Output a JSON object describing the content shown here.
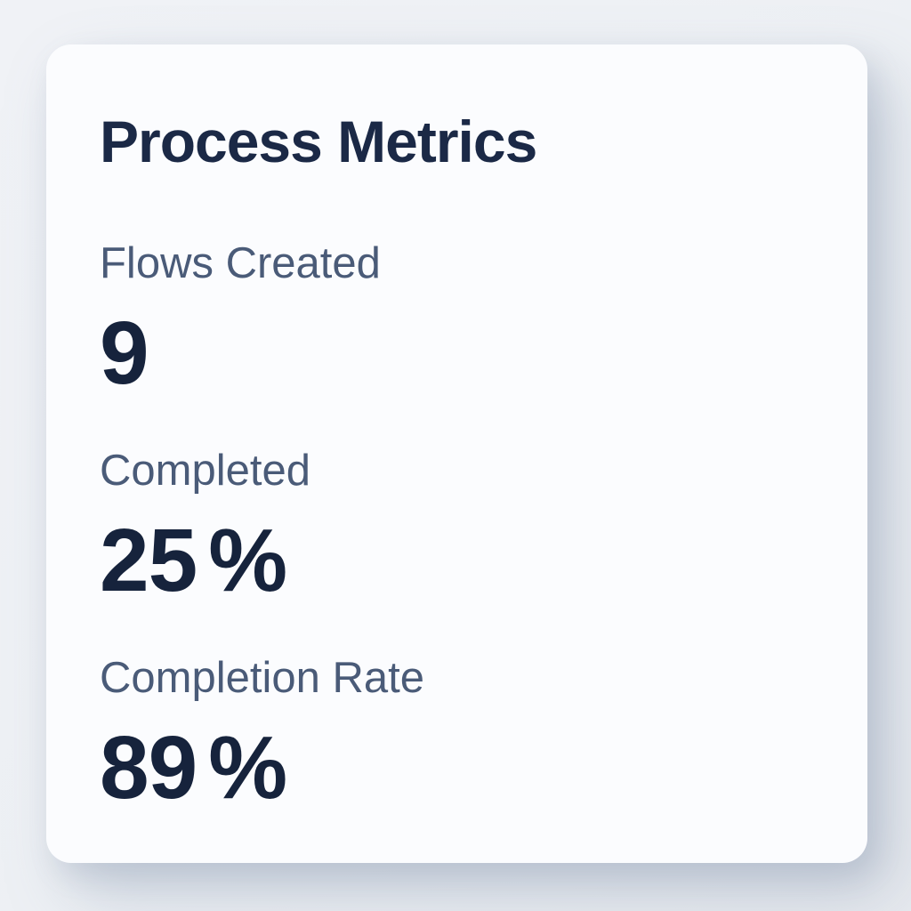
{
  "card": {
    "title": "Process Metrics",
    "metrics": [
      {
        "label": "Flows Created",
        "value": "9",
        "unit": ""
      },
      {
        "label": "Completed",
        "value": "25",
        "unit": "%"
      },
      {
        "label": "Completion Rate",
        "value": "89",
        "unit": "%"
      }
    ]
  },
  "colors": {
    "page-bg": "#edf0f4",
    "card-bg": "#fbfcfe",
    "title-color": "#1b2946",
    "label-color": "#4a5b78",
    "value-color": "#16233c"
  }
}
